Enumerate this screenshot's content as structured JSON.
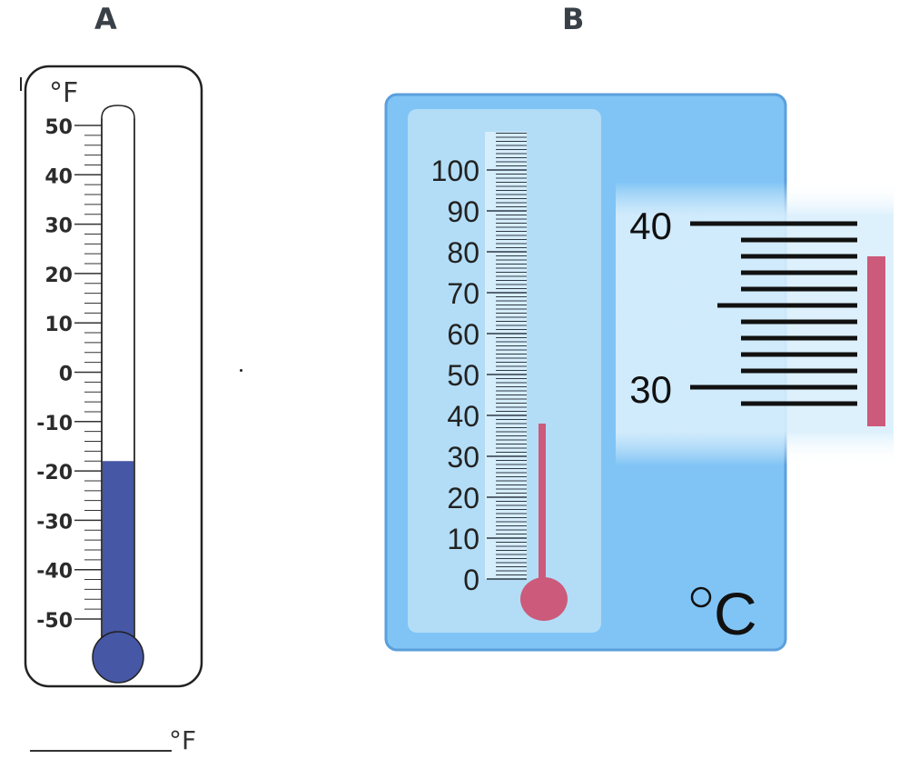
{
  "panels": {
    "a": {
      "label": "A",
      "unit": "°F",
      "tick_labels": [
        "50",
        "40",
        "30",
        "20",
        "10",
        "0",
        "-10",
        "-20",
        "-30",
        "-40",
        "-50"
      ],
      "reading": -18,
      "liquid_color": "#4557a5",
      "answer_unit": "°F"
    },
    "b": {
      "label": "B",
      "unit": "°C",
      "tick_labels": [
        "100",
        "90",
        "80",
        "70",
        "60",
        "50",
        "40",
        "30",
        "20",
        "10",
        "0"
      ],
      "reading": 38,
      "magnified_labels": [
        "40",
        "30"
      ],
      "liquid_color": "#cc5a7a",
      "background_color": "#80c4f5"
    }
  }
}
